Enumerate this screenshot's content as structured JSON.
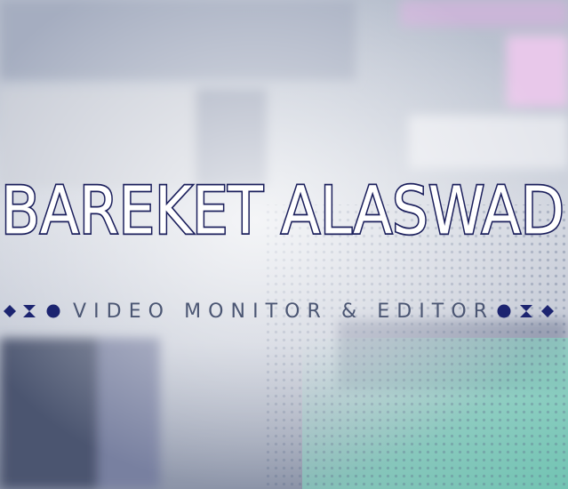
{
  "title": "BAREKET ALASWAD",
  "subtitle": "VIDEO MONITOR & EDITOR"
}
